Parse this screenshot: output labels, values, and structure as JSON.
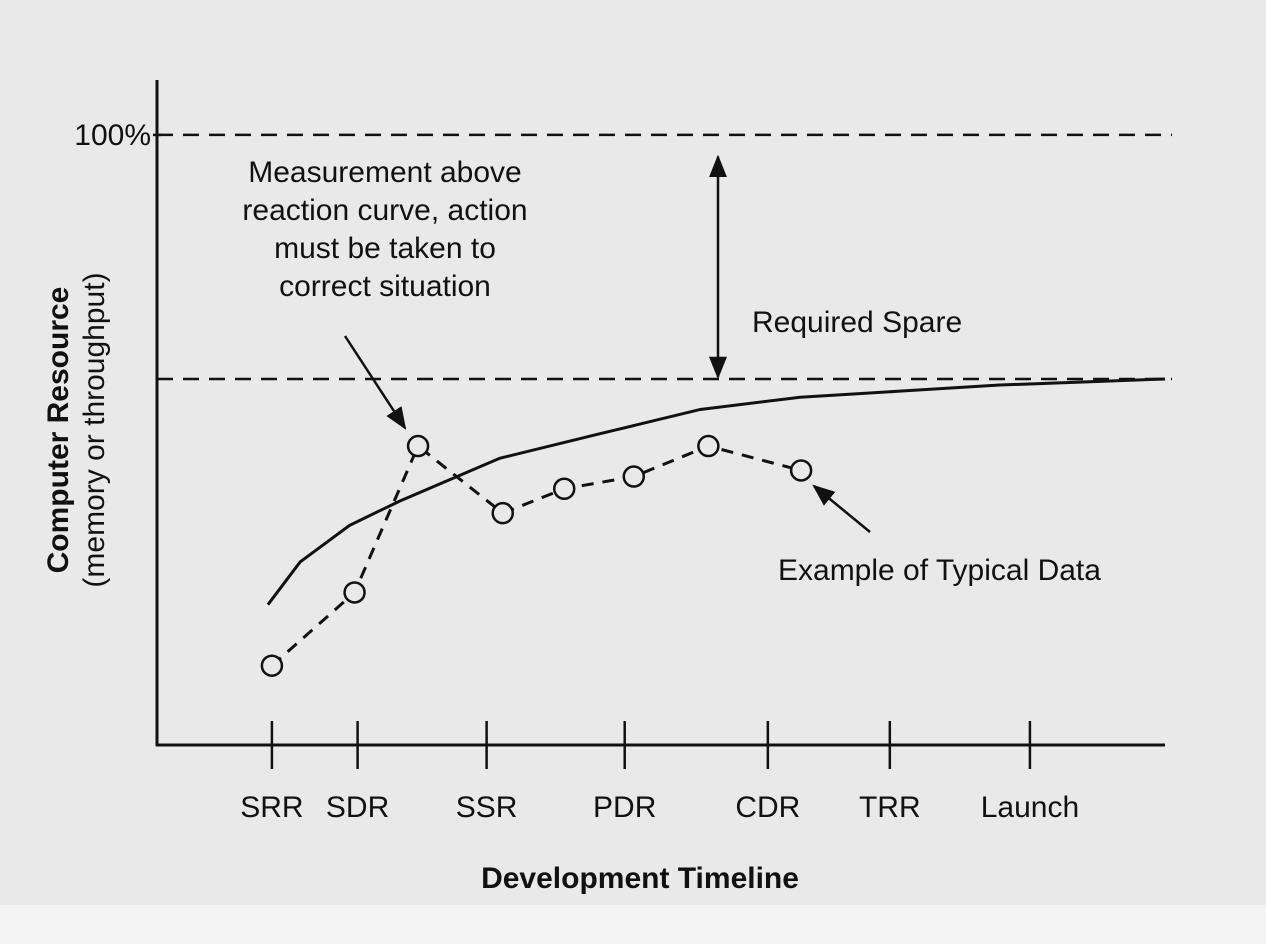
{
  "chart_data": {
    "type": "line",
    "xlabel": "Development Timeline",
    "ylabel": "Computer Resource",
    "ylabel_sub": "(memory or throughput)",
    "xlim": [
      0,
      100
    ],
    "ylim": [
      0,
      109
    ],
    "xticks": [
      {
        "value": 11.4,
        "label": "SRR"
      },
      {
        "value": 19.9,
        "label": "SDR"
      },
      {
        "value": 32.7,
        "label": "SSR"
      },
      {
        "value": 46.4,
        "label": "PDR"
      },
      {
        "value": 60.6,
        "label": "CDR"
      },
      {
        "value": 72.7,
        "label": "TRR"
      },
      {
        "value": 86.6,
        "label": "Launch"
      }
    ],
    "yticks": [
      {
        "value": 100,
        "label": "100%"
      }
    ],
    "grid": "dashed",
    "reference_line": {
      "value": 60,
      "style": "dashed"
    },
    "series": [
      {
        "color": "#111111",
        "style": "solid",
        "marker": "none",
        "x": [
          11,
          14.2,
          19.1,
          24.1,
          34.0,
          43.9,
          53.9,
          63.8,
          73.7,
          83.6,
          100
        ],
        "values": [
          23,
          30,
          36,
          40,
          47,
          51,
          55,
          57,
          58,
          59,
          60
        ]
      },
      {
        "color": "#111111",
        "style": "dashed",
        "marker": "circle",
        "x": [
          11.4,
          19.6,
          25.9,
          34.3,
          40.4,
          47.3,
          54.7,
          63.9
        ],
        "values": [
          13,
          25,
          49,
          38,
          42,
          44,
          49,
          45
        ]
      }
    ],
    "annotations": [
      {
        "text": [
          "Measurement above",
          "reaction curve, action",
          "must be taken to",
          "correct situation"
        ]
      },
      {
        "text": "Required Spare"
      },
      {
        "text": "Example of Typical Data"
      }
    ]
  }
}
